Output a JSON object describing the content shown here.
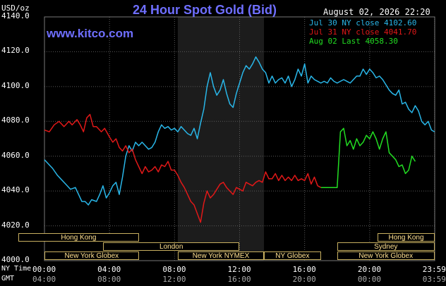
{
  "header": {
    "unit": "USD/oz",
    "title": "24 Hour Spot Gold (Bid)",
    "site": "www.kitco.com",
    "datetime": "August 02, 2026 22:20"
  },
  "legend": [
    {
      "label": "Jul 30 NY close 4102.60",
      "color": "#29b6e8"
    },
    {
      "label": "Jul 31 NY close 4041.70",
      "color": "#e01818"
    },
    {
      "label": "Aug 02 Last 4058.30",
      "color": "#22dd22"
    }
  ],
  "axis": {
    "row_label_ny": "NY Time",
    "row_label_gmt": "GMT",
    "ny_ticks": [
      "00:00",
      "04:00",
      "08:00",
      "12:00",
      "16:00",
      "20:00",
      "23:59"
    ],
    "gmt_ticks": [
      "04:00",
      "08:00",
      "12:00",
      "16:00",
      "20:00",
      "00:00",
      "03:59"
    ]
  },
  "markets": [
    {
      "name": "Hong Kong",
      "start": -1.6,
      "end": 5.8,
      "row": 0
    },
    {
      "name": "London",
      "start": 3.6,
      "end": 12.0,
      "row": 1
    },
    {
      "name": "New York Globex",
      "start": 0,
      "end": 5.8,
      "row": 2
    },
    {
      "name": "New York NYMEX",
      "start": 8.2,
      "end": 13.5,
      "row": 2
    },
    {
      "name": "NY Globex",
      "start": 13.5,
      "end": 17.0,
      "row": 2
    },
    {
      "name": "Hong Kong",
      "start": 20.5,
      "end": 23.99,
      "row": 0
    },
    {
      "name": "Sydney",
      "start": 18.0,
      "end": 23.99,
      "row": 1
    },
    {
      "name": "New York Globex",
      "start": 18.0,
      "end": 23.99,
      "row": 2
    }
  ],
  "chart_data": {
    "type": "line",
    "title": "24 Hour Spot Gold (Bid)",
    "xlabel": "NY Time",
    "ylabel": "USD/oz",
    "xlim": [
      0,
      24
    ],
    "ylim": [
      4000,
      4140
    ],
    "yticks": [
      4000.0,
      4020.0,
      4040.0,
      4060.0,
      4080.0,
      4100.0,
      4120.0,
      4140.0
    ],
    "ytick_labels": [
      "4000.0",
      "4020.0",
      "4040.0",
      "4060.0",
      "4080.0",
      "4100.0",
      "4120.0",
      "4140.0"
    ],
    "grid": true,
    "shaded_region": [
      8.2,
      13.5
    ],
    "legend_position": "top-right",
    "series": [
      {
        "name": "Jul 30 NY close 4102.60",
        "color": "#29b6e8",
        "x": [
          0.0,
          0.3,
          0.5,
          0.8,
          1.0,
          1.3,
          1.6,
          1.9,
          2.1,
          2.3,
          2.5,
          2.7,
          2.9,
          3.2,
          3.4,
          3.6,
          3.8,
          4.0,
          4.2,
          4.4,
          4.6,
          4.8,
          5.0,
          5.2,
          5.4,
          5.6,
          5.8,
          6.0,
          6.2,
          6.4,
          6.6,
          6.8,
          7.0,
          7.2,
          7.4,
          7.6,
          7.8,
          8.0,
          8.2,
          8.4,
          8.6,
          8.8,
          9.0,
          9.2,
          9.4,
          9.6,
          9.8,
          10.0,
          10.2,
          10.4,
          10.6,
          10.8,
          11.0,
          11.2,
          11.4,
          11.6,
          11.8,
          12.0,
          12.2,
          12.4,
          12.6,
          12.8,
          13.0,
          13.2,
          13.4,
          13.6,
          13.8,
          14.0,
          14.2,
          14.4,
          14.6,
          14.8,
          15.0,
          15.2,
          15.4,
          15.6,
          15.8,
          16.0,
          16.2,
          16.4,
          16.6,
          16.8,
          17.0,
          17.2,
          17.4,
          17.6,
          17.8,
          18.0,
          18.2,
          18.4,
          18.6,
          18.8,
          19.0,
          19.2,
          19.4,
          19.6,
          19.8,
          20.0,
          20.2,
          20.4,
          20.6,
          20.8,
          21.0,
          21.2,
          21.4,
          21.6,
          21.8,
          22.0,
          22.2,
          22.4,
          22.6,
          22.8,
          23.0,
          23.2,
          23.4,
          23.6,
          23.8,
          23.99
        ],
        "y": [
          4058,
          4055,
          4053,
          4049,
          4047,
          4044,
          4041,
          4042,
          4038,
          4034,
          4034,
          4032,
          4035,
          4034,
          4038,
          4043,
          4036,
          4039,
          4043,
          4045,
          4038,
          4048,
          4060,
          4066,
          4063,
          4068,
          4066,
          4068,
          4066,
          4064,
          4065,
          4068,
          4074,
          4078,
          4076,
          4077,
          4075,
          4076,
          4074,
          4077,
          4075,
          4073,
          4072,
          4076,
          4070,
          4079,
          4087,
          4100,
          4108,
          4100,
          4095,
          4098,
          4104,
          4096,
          4090,
          4088,
          4096,
          4102,
          4108,
          4112,
          4110,
          4113,
          4117,
          4114,
          4110,
          4108,
          4102,
          4106,
          4102,
          4104,
          4105,
          4102,
          4106,
          4100,
          4104,
          4110,
          4106,
          4113,
          4102,
          4106,
          4104,
          4103,
          4102,
          4103,
          4102,
          4105,
          4103,
          4102,
          4103,
          4104,
          4103,
          4102,
          4104,
          4106,
          4106,
          4110,
          4107,
          4110,
          4108,
          4105,
          4106,
          4104,
          4101,
          4098,
          4096,
          4095,
          4098,
          4090,
          4091,
          4087,
          4085,
          4089,
          4086,
          4080,
          4078,
          4080,
          4075,
          4074
        ]
      },
      {
        "name": "Jul 31 NY close 4041.70",
        "color": "#e01818",
        "x": [
          0.0,
          0.3,
          0.6,
          0.9,
          1.2,
          1.5,
          1.7,
          2.0,
          2.2,
          2.4,
          2.6,
          2.8,
          3.0,
          3.2,
          3.5,
          3.7,
          4.0,
          4.2,
          4.4,
          4.6,
          4.8,
          5.0,
          5.2,
          5.4,
          5.6,
          5.8,
          6.0,
          6.2,
          6.4,
          6.6,
          6.8,
          7.0,
          7.2,
          7.4,
          7.6,
          7.8,
          8.0,
          8.2,
          8.4,
          8.6,
          8.8,
          9.0,
          9.2,
          9.4,
          9.6,
          9.8,
          10.0,
          10.2,
          10.4,
          10.6,
          10.8,
          11.0,
          11.2,
          11.4,
          11.6,
          11.8,
          12.0,
          12.2,
          12.4,
          12.6,
          12.8,
          13.0,
          13.2,
          13.4,
          13.6,
          13.8,
          14.0,
          14.2,
          14.4,
          14.6,
          14.8,
          15.0,
          15.2,
          15.4,
          15.6,
          15.8,
          16.0,
          16.2,
          16.4,
          16.6,
          16.8,
          17.0
        ],
        "y": [
          4075,
          4074,
          4078,
          4080,
          4077,
          4080,
          4078,
          4081,
          4078,
          4074,
          4082,
          4084,
          4077,
          4077,
          4074,
          4076,
          4071,
          4068,
          4070,
          4065,
          4063,
          4066,
          4062,
          4064,
          4058,
          4054,
          4050,
          4054,
          4051,
          4052,
          4054,
          4051,
          4055,
          4054,
          4057,
          4052,
          4052,
          4049,
          4045,
          4042,
          4038,
          4034,
          4032,
          4027,
          4022,
          4033,
          4040,
          4036,
          4038,
          4041,
          4044,
          4045,
          4042,
          4040,
          4038,
          4042,
          4041,
          4040,
          4045,
          4044,
          4043,
          4045,
          4046,
          4045,
          4051,
          4047,
          4047,
          4050,
          4046,
          4049,
          4046,
          4048,
          4046,
          4049,
          4046,
          4047,
          4046,
          4050,
          4044,
          4048,
          4043,
          4042
        ]
      },
      {
        "name": "Aug 02 Last 4058.30",
        "color": "#22dd22",
        "x": [
          17.0,
          17.3,
          17.5,
          17.7,
          17.9,
          18.0,
          18.1,
          18.2,
          18.4,
          18.6,
          18.8,
          19.0,
          19.2,
          19.4,
          19.6,
          19.8,
          20.0,
          20.2,
          20.4,
          20.6,
          20.8,
          21.0,
          21.2,
          21.4,
          21.6,
          21.8,
          22.0,
          22.2,
          22.4,
          22.6,
          22.8
        ],
        "y": [
          4042,
          4042,
          4042,
          4042,
          4042,
          4042,
          4058,
          4074,
          4076,
          4066,
          4069,
          4064,
          4070,
          4066,
          4068,
          4072,
          4070,
          4074,
          4070,
          4064,
          4070,
          4074,
          4062,
          4060,
          4058,
          4054,
          4055,
          4050,
          4052,
          4060,
          4057
        ]
      }
    ]
  }
}
